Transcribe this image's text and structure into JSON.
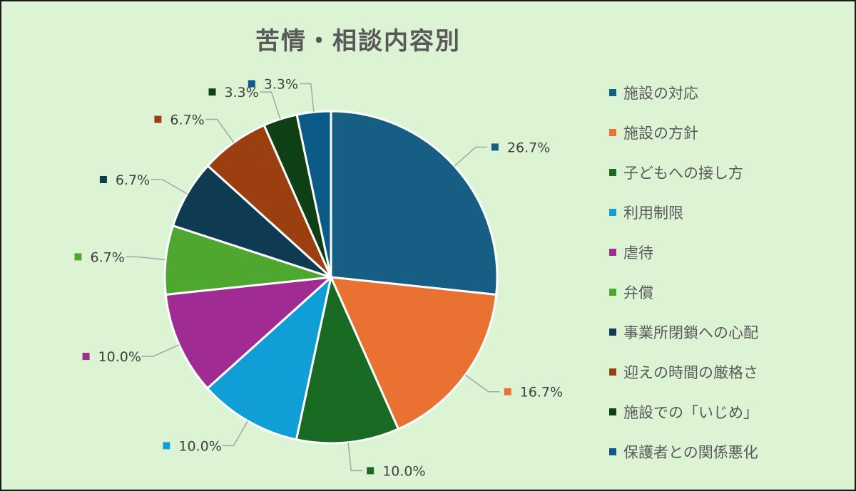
{
  "chart_data": {
    "type": "pie",
    "title": "苦情・相談内容別",
    "categories": [
      "施設の対応",
      "施設の方針",
      "子どもへの接し方",
      "利用制限",
      "虐待",
      "弁償",
      "事業所閉鎖への心配",
      "迎えの時間の厳格さ",
      "施設での「いじめ」",
      "保護者との関係悪化"
    ],
    "values": [
      26.7,
      16.7,
      10.0,
      10.0,
      10.0,
      6.7,
      6.7,
      6.7,
      3.3,
      3.3
    ],
    "data_labels": [
      "26.7%",
      "16.7%",
      "10.0%",
      "10.0%",
      "10.0%",
      "6.7%",
      "6.7%",
      "6.7%",
      "3.3%",
      "3.3%"
    ],
    "colors": [
      "#165e83",
      "#e97132",
      "#196b24",
      "#0f9ed5",
      "#a02b93",
      "#4ea72e",
      "#0e3a52",
      "#9b3f10",
      "#0f3f15",
      "#0c5a87"
    ],
    "legend_position": "right",
    "start_angle": "12 o'clock",
    "direction": "clockwise"
  }
}
